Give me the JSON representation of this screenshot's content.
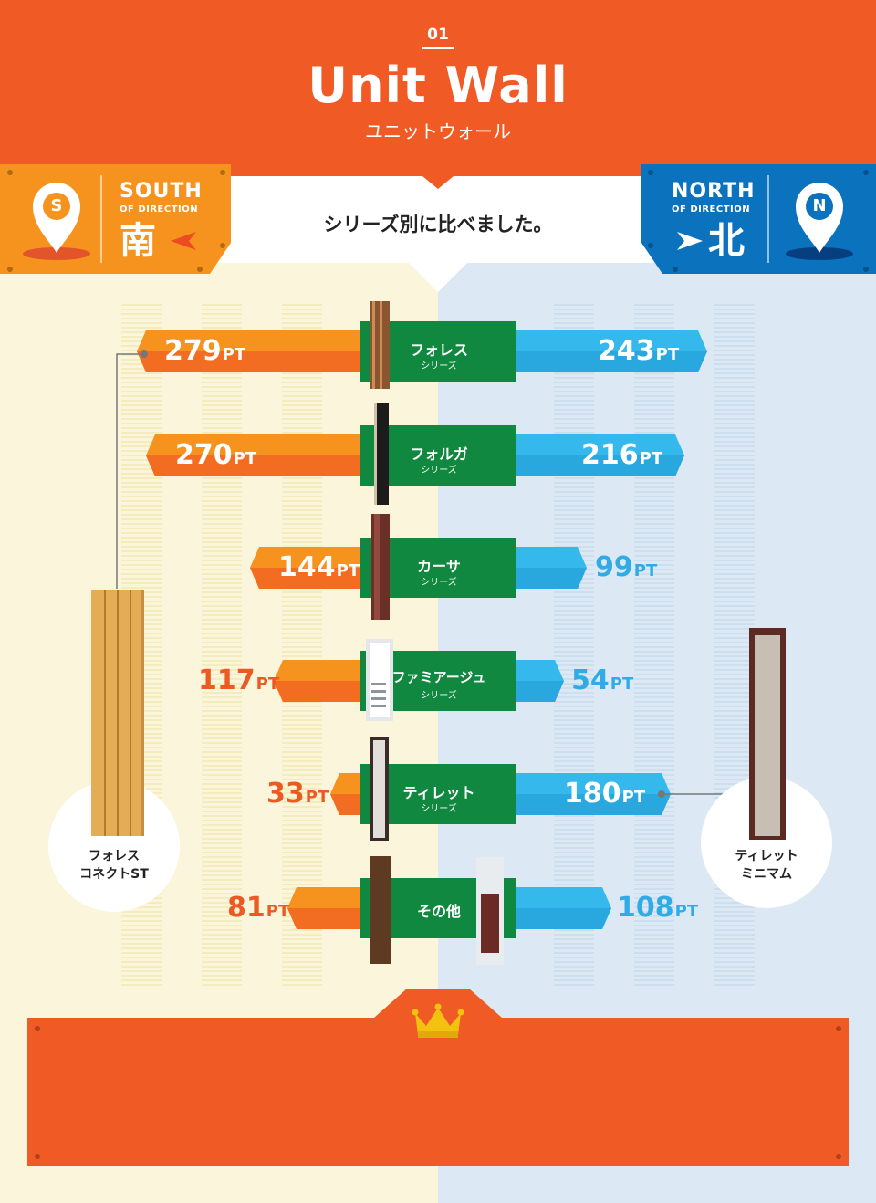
{
  "header": {
    "number": "01",
    "title": "Unit Wall",
    "subtitle": "ユニットウォール"
  },
  "tagline": "シリーズ別に比べました。",
  "south": {
    "badge": "S",
    "word": "SOUTH",
    "of_direction": "OF DIRECTION",
    "kanji": "南",
    "color": "#f6921e"
  },
  "north": {
    "badge": "N",
    "word": "NORTH",
    "of_direction": "OF DIRECTION",
    "kanji": "北",
    "color": "#0b72bd"
  },
  "unit": "PT",
  "series": [
    {
      "name": "フォレス",
      "sub": "シリーズ",
      "south": "279",
      "north": "243"
    },
    {
      "name": "フォルガ",
      "sub": "シリーズ",
      "south": "270",
      "north": "216"
    },
    {
      "name": "カーサ",
      "sub": "シリーズ",
      "south": "144",
      "north": "99"
    },
    {
      "name": "ファミアージュ",
      "sub": "シリーズ",
      "south": "117",
      "north": "54"
    },
    {
      "name": "ティレット",
      "sub": "シリーズ",
      "south": "33",
      "north": "180"
    },
    {
      "name": "その他",
      "sub": "",
      "south": "81",
      "north": "108"
    }
  ],
  "highlights": {
    "south_product": "フォレス\nコネクトST",
    "north_product": "ティレット\nミニマム"
  },
  "colors": {
    "header": "#ef5a25",
    "south_bar": "#f6921e",
    "north_bar": "#35b9ec",
    "center": "#118840",
    "crown": "#f3c10f"
  }
}
